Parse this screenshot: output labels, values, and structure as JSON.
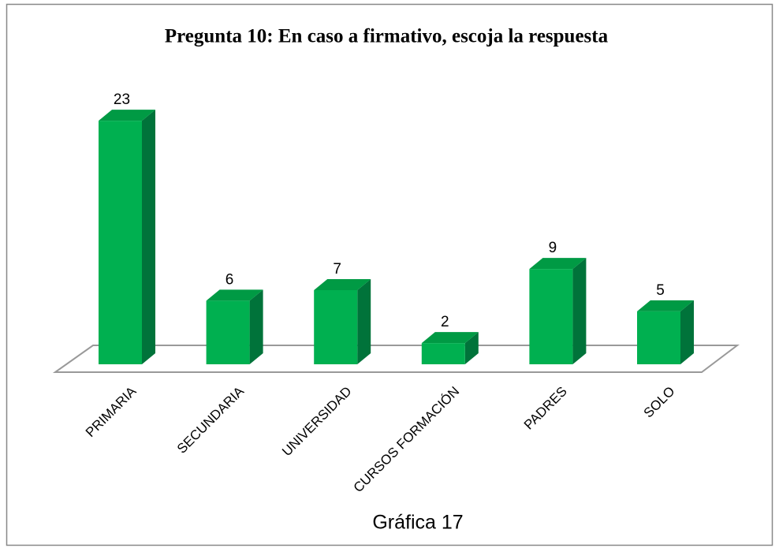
{
  "chart_data": {
    "type": "bar",
    "title": "Pregunta 10:  En caso a firmativo, escoja la respuesta",
    "categories": [
      "PRIMARIA",
      "SECUNDARIA",
      "UNIVERSIDAD",
      "CURSOS FORMACIÓN",
      "PADRES",
      "SOLO"
    ],
    "values": [
      23,
      6,
      7,
      2,
      9,
      5
    ],
    "color": "#00b050",
    "caption": "Gráfica 17"
  }
}
